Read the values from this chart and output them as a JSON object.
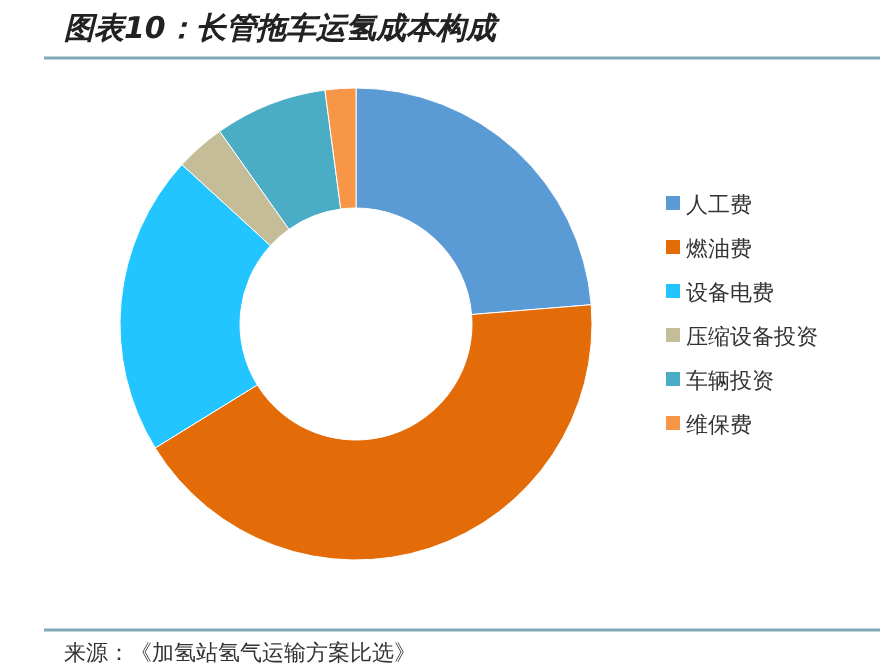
{
  "chart_data": {
    "type": "donut",
    "title": "图表10：长管拖车运氢成本构成",
    "categories": [
      "人工费",
      "燃油费",
      "设备电费",
      "压缩设备投资",
      "车辆投资",
      "维保费"
    ],
    "values": [
      23.7,
      42.5,
      20.6,
      3.4,
      7.7,
      2.1
    ],
    "colors": [
      "#5b9bd5",
      "#e36c09",
      "#22c5ff",
      "#c4bd97",
      "#4bacc6",
      "#f79646"
    ],
    "legend": "right",
    "annotations": [
      "来源：《加氢站氢气运输方案比选》"
    ]
  }
}
